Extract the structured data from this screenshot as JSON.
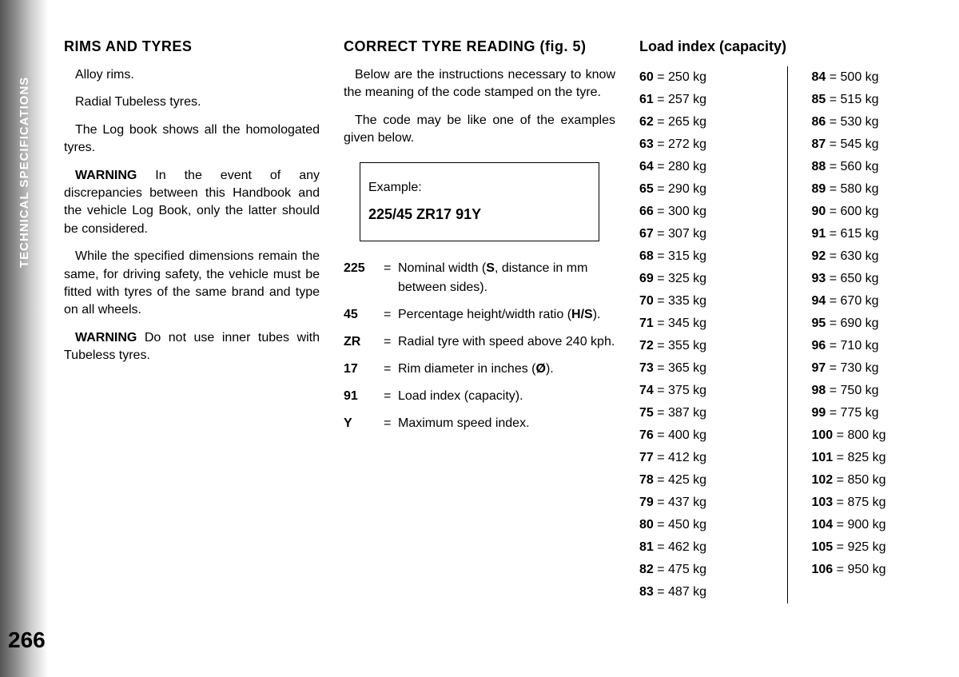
{
  "side_label": "TECHNICAL SPECIFICATIONS",
  "page_number": "266",
  "col1": {
    "heading": "RIMS AND TYRES",
    "p1": "Alloy rims.",
    "p2": "Radial Tubeless tyres.",
    "p3": "The Log book shows all the homologated tyres.",
    "warn1_label": "WARNING",
    "warn1_text": " In the event of any discrepancies between this Handbook and the vehicle Log Book, only the latter should be considered.",
    "p4": "While the specified dimensions remain the same, for driving safety, the vehicle must be fitted with tyres of the same brand and type on all wheels.",
    "warn2_label": "WARNING",
    "warn2_text": " Do not use inner tubes with Tubeless tyres."
  },
  "col2": {
    "heading": "CORRECT TYRE READING (fig. 5)",
    "p1": "Below are the instructions necessary to know the meaning of the code stamped on the tyre.",
    "p2": "The code may be like one of the examples given below.",
    "example_label": "Example:",
    "example_code": "225/45 ZR17 91Y",
    "codes": [
      {
        "k": "225",
        "v": "Nominal width (<b>S</b>, distance in mm between sides)."
      },
      {
        "k": "45",
        "v": "Percentage height/width ratio (<b>H/S</b>)."
      },
      {
        "k": "ZR",
        "v": "Radial tyre with speed above 240 kph."
      },
      {
        "k": "17",
        "v": "Rim diameter in inches (<b>Ø</b>)."
      },
      {
        "k": "91",
        "v": "Load index (capacity)."
      },
      {
        "k": "Y",
        "v": "Maximum speed index."
      }
    ]
  },
  "col3": {
    "heading": "Load index (capacity)",
    "left": [
      {
        "i": "60",
        "w": "250 kg"
      },
      {
        "i": "61",
        "w": "257 kg"
      },
      {
        "i": "62",
        "w": "265 kg"
      },
      {
        "i": "63",
        "w": "272 kg"
      },
      {
        "i": "64",
        "w": "280 kg"
      },
      {
        "i": "65",
        "w": "290 kg"
      },
      {
        "i": "66",
        "w": "300 kg"
      },
      {
        "i": "67",
        "w": "307 kg"
      },
      {
        "i": "68",
        "w": "315 kg"
      },
      {
        "i": "69",
        "w": "325 kg"
      },
      {
        "i": "70",
        "w": "335 kg"
      },
      {
        "i": "71",
        "w": "345 kg"
      },
      {
        "i": "72",
        "w": "355 kg"
      },
      {
        "i": "73",
        "w": "365 kg"
      },
      {
        "i": "74",
        "w": "375 kg"
      },
      {
        "i": "75",
        "w": "387 kg"
      },
      {
        "i": "76",
        "w": "400 kg"
      },
      {
        "i": "77",
        "w": "412 kg"
      },
      {
        "i": "78",
        "w": "425 kg"
      },
      {
        "i": "79",
        "w": "437 kg"
      },
      {
        "i": "80",
        "w": "450 kg"
      },
      {
        "i": "81",
        "w": "462 kg"
      },
      {
        "i": "82",
        "w": "475 kg"
      },
      {
        "i": "83",
        "w": "487 kg"
      }
    ],
    "right": [
      {
        "i": "84",
        "w": "500 kg"
      },
      {
        "i": "85",
        "w": "515 kg"
      },
      {
        "i": "86",
        "w": "530 kg"
      },
      {
        "i": "87",
        "w": "545 kg"
      },
      {
        "i": "88",
        "w": "560 kg"
      },
      {
        "i": "89",
        "w": "580 kg"
      },
      {
        "i": "90",
        "w": "600 kg"
      },
      {
        "i": "91",
        "w": "615 kg"
      },
      {
        "i": "92",
        "w": "630 kg"
      },
      {
        "i": "93",
        "w": "650 kg"
      },
      {
        "i": "94",
        "w": "670 kg"
      },
      {
        "i": "95",
        "w": "690 kg"
      },
      {
        "i": "96",
        "w": "710 kg"
      },
      {
        "i": "97",
        "w": "730 kg"
      },
      {
        "i": "98",
        "w": "750 kg"
      },
      {
        "i": "99",
        "w": "775 kg"
      },
      {
        "i": "100",
        "w": "800 kg"
      },
      {
        "i": "101",
        "w": "825 kg"
      },
      {
        "i": "102",
        "w": "850 kg"
      },
      {
        "i": "103",
        "w": "875 kg"
      },
      {
        "i": "104",
        "w": "900 kg"
      },
      {
        "i": "105",
        "w": "925 kg"
      },
      {
        "i": "106",
        "w": "950 kg"
      }
    ]
  }
}
